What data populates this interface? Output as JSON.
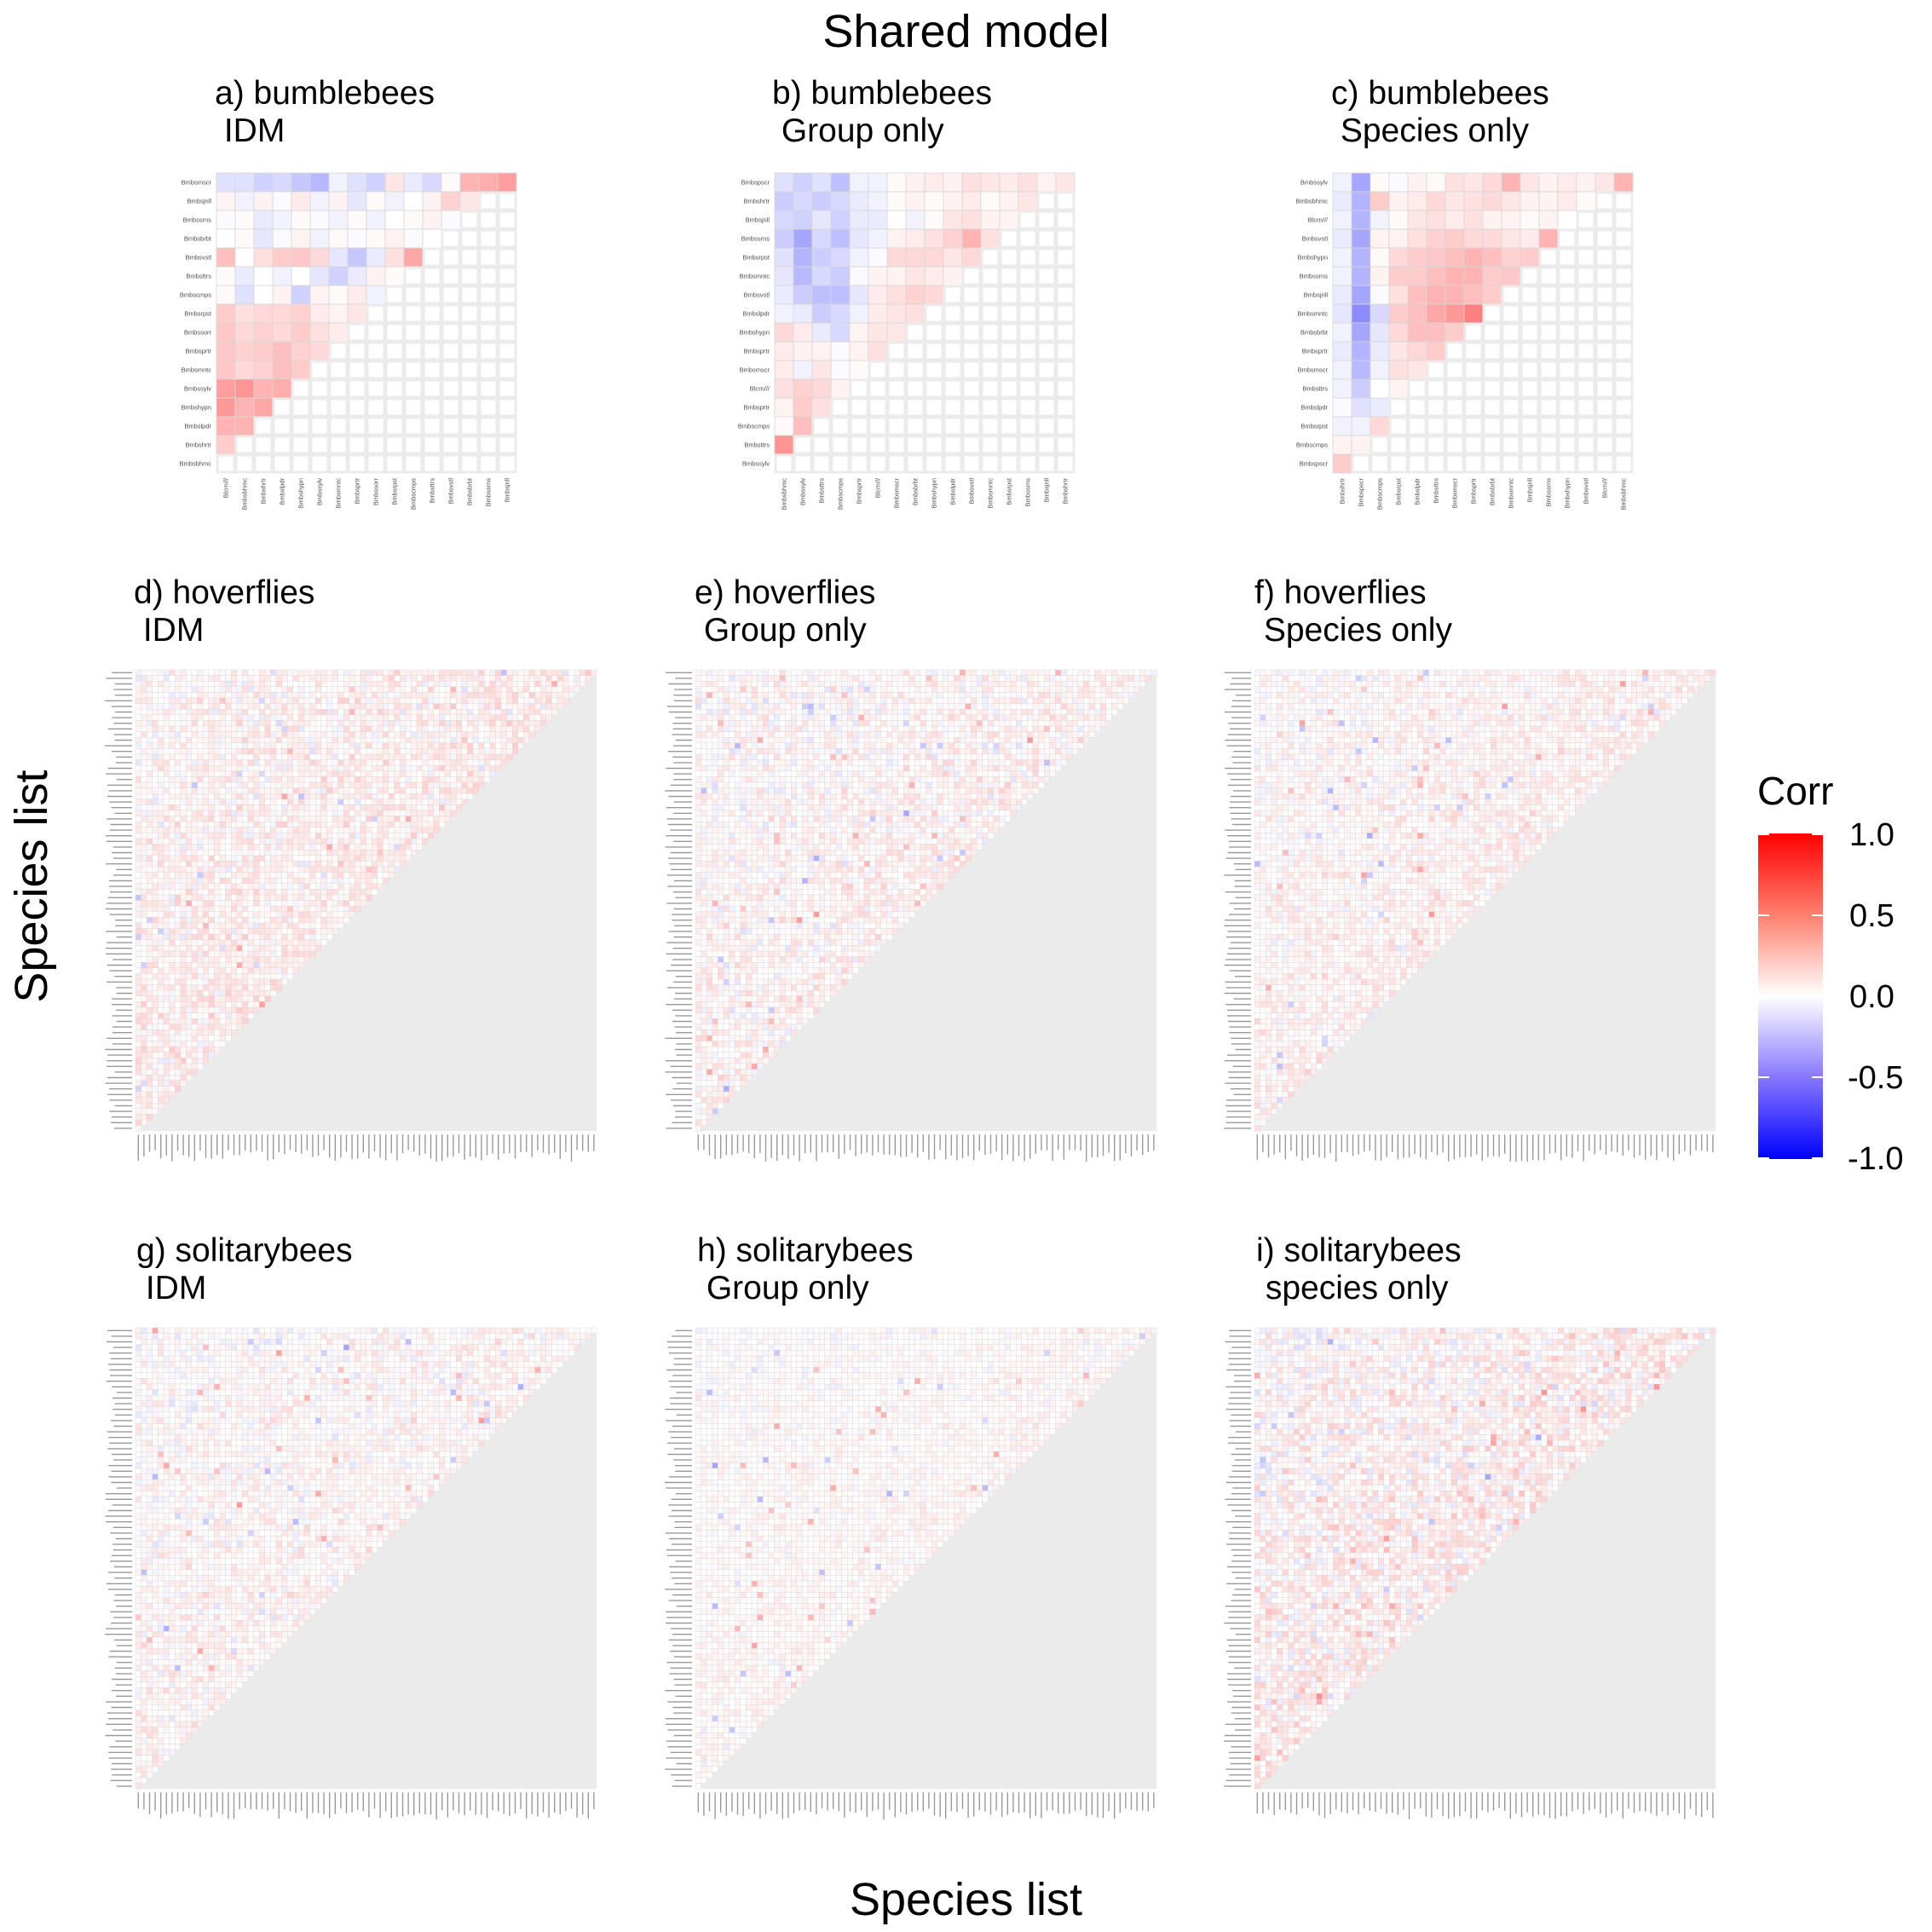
{
  "title": "Shared model",
  "xlabel": "Species list",
  "ylabel": "Species list",
  "legend": {
    "title": "Corr",
    "labels": [
      "1.0",
      "0.5",
      "0.0",
      "-0.5",
      "-1.0"
    ],
    "values": [
      1.0,
      0.5,
      0.0,
      -0.5,
      -1.0
    ],
    "colors": {
      "high": "#ff0000",
      "mid": "#ffffff",
      "low": "#0000ff",
      "na": "#ebebeb",
      "border": "#d6d6d6"
    }
  },
  "panels": [
    {
      "id": "a",
      "title_line1": "a) bumblebees",
      "title_line2": " IDM"
    },
    {
      "id": "b",
      "title_line1": "b) bumblebees",
      "title_line2": " Group only"
    },
    {
      "id": "c",
      "title_line1": "c) bumblebees",
      "title_line2": " Species only"
    },
    {
      "id": "d",
      "title_line1": "d) hoverflies",
      "title_line2": " IDM"
    },
    {
      "id": "e",
      "title_line1": "e) hoverflies",
      "title_line2": " Group only"
    },
    {
      "id": "f",
      "title_line1": "f) hoverflies",
      "title_line2": " Species only"
    },
    {
      "id": "g",
      "title_line1": "g) solitarybees",
      "title_line2": " IDM"
    },
    {
      "id": "h",
      "title_line1": "h) solitarybees",
      "title_line2": " Group only"
    },
    {
      "id": "i",
      "title_line1": "i) solitarybees",
      "title_line2": " species only"
    }
  ],
  "chart_data": [
    {
      "type": "heatmap",
      "title": "a) bumblebees\n IDM",
      "xlabel": "Species list",
      "ylabel": "Species list",
      "color_range": [
        -1,
        1
      ],
      "y_categories": [
        "Bmbsmscr",
        "Bmbsjnll",
        "Bmbssrns",
        "Bmbsbrbt",
        "Bmbsvstl",
        "Bmbsttrs",
        "Bmbscmps",
        "Bmbsrpst",
        "Bmbssorr",
        "Bmbsprtr",
        "Bmbsmntc",
        "Bmbssylv",
        "Bmbshypn",
        "Bmbslpdr",
        "Bmbshrtr",
        "Bmbsbhmc"
      ],
      "x_categories": [
        "Blcrn///",
        "Bmbsbhmc",
        "Bmbshrtr",
        "Bmbslpdr",
        "Bmbshypn",
        "Bmbssylv",
        "Bmbsmntc",
        "Bmbsprtr",
        "Bmbssorr",
        "Bmbsrpst",
        "Bmbscmps",
        "Bmbsttrs",
        "Bmbsvstl",
        "Bmbsbrbt",
        "Bmbssrns",
        "Bmbsjnll"
      ],
      "values": [
        [
          -0.12,
          -0.12,
          -0.18,
          -0.15,
          -0.22,
          -0.28,
          -0.05,
          -0.12,
          -0.18,
          0.1,
          -0.08,
          -0.15,
          0.02,
          0.3,
          0.32,
          0.38
        ],
        [
          0.05,
          -0.05,
          0.05,
          -0.02,
          0.08,
          -0.05,
          0.05,
          -0.1,
          0.02,
          -0.05,
          0.0,
          0.05,
          0.18,
          0.1
        ],
        [
          -0.02,
          0.02,
          -0.08,
          -0.05,
          0.02,
          -0.02,
          -0.05,
          0.02,
          -0.05,
          0.0,
          0.02,
          0.05,
          -0.02
        ],
        [
          0.0,
          0.02,
          -0.1,
          -0.02,
          0.05,
          -0.05,
          0.02,
          -0.02,
          0.02,
          0.05,
          -0.02,
          0.0
        ],
        [
          0.25,
          0.0,
          0.12,
          0.2,
          0.22,
          0.15,
          -0.1,
          -0.22,
          -0.08,
          0.12,
          0.35
        ],
        [
          0.02,
          -0.08,
          0.0,
          -0.05,
          0.0,
          -0.1,
          -0.18,
          -0.08,
          0.05,
          0.02
        ],
        [
          0.02,
          -0.12,
          0.0,
          0.05,
          -0.18,
          0.05,
          0.02,
          0.08,
          -0.05
        ],
        [
          0.2,
          0.12,
          0.15,
          0.15,
          0.18,
          0.08,
          0.05,
          0.1
        ],
        [
          0.22,
          0.15,
          0.18,
          0.15,
          0.2,
          0.12,
          0.08
        ],
        [
          0.22,
          0.18,
          0.2,
          0.25,
          0.18,
          0.15
        ],
        [
          0.22,
          0.15,
          0.18,
          0.25,
          0.2
        ],
        [
          0.38,
          0.42,
          0.3,
          0.32
        ],
        [
          0.4,
          0.3,
          0.35
        ],
        [
          0.3,
          0.3
        ],
        [
          0.2
        ],
        []
      ]
    },
    {
      "type": "heatmap",
      "title": "b) bumblebees\n Group only",
      "xlabel": "Species list",
      "ylabel": "Species list",
      "color_range": [
        -1,
        1
      ],
      "y_categories": [
        "Bmbspscr",
        "Bmbshrtr",
        "Bmbsjnll",
        "Bmbssrns",
        "Bmbsrpst",
        "Bmbsmntc",
        "Bmbsvstl",
        "Bmbslpdr",
        "Bmbshypn",
        "Bmbsprtr",
        "Bmbsmscr",
        "Blcrn///",
        "Bmbsprtr",
        "Bmbscmps",
        "Bmbsttrs",
        "Bmbssylv"
      ],
      "x_categories": [
        "Bmbsbhmc",
        "Bmbssylv",
        "Bmbsttrs",
        "Bmbscmps",
        "Bmbsprtr",
        "Blcrn///",
        "Bmbsmscr",
        "Bmbsbrbt",
        "Bmbshypn",
        "Bmbslpdr",
        "Bmbsvstl",
        "Bmbsmntc",
        "Bmbsrpst",
        "Bmbssrns",
        "Bmbsjnll",
        "Bmbshrtr"
      ],
      "values": [
        [
          -0.12,
          -0.18,
          -0.12,
          -0.25,
          -0.05,
          -0.05,
          0.02,
          0.05,
          0.08,
          0.05,
          0.12,
          0.1,
          0.08,
          0.12,
          0.05,
          0.1
        ],
        [
          -0.2,
          -0.15,
          -0.2,
          -0.15,
          -0.08,
          -0.05,
          0.02,
          0.05,
          0.02,
          0.05,
          0.08,
          0.02,
          0.05,
          0.1
        ],
        [
          -0.15,
          -0.18,
          -0.1,
          -0.18,
          -0.08,
          -0.08,
          0.0,
          -0.05,
          0.02,
          0.1,
          0.12,
          0.05,
          0.05
        ],
        [
          -0.2,
          -0.35,
          -0.15,
          -0.25,
          -0.1,
          -0.05,
          0.05,
          0.08,
          0.12,
          0.18,
          0.3,
          0.12
        ],
        [
          -0.12,
          -0.3,
          -0.2,
          -0.15,
          -0.05,
          -0.02,
          0.15,
          0.15,
          0.15,
          0.1,
          0.15
        ],
        [
          -0.1,
          -0.28,
          -0.15,
          -0.2,
          -0.02,
          0.05,
          0.05,
          0.1,
          0.08,
          0.05
        ],
        [
          -0.08,
          -0.2,
          -0.25,
          -0.25,
          -0.1,
          0.08,
          0.12,
          0.18,
          0.15
        ],
        [
          -0.05,
          -0.08,
          -0.2,
          -0.15,
          -0.05,
          0.08,
          0.1,
          0.12
        ],
        [
          0.15,
          0.08,
          -0.08,
          -0.15,
          0.05,
          0.1,
          0.1
        ],
        [
          0.08,
          0.05,
          0.05,
          -0.02,
          0.05,
          0.12
        ],
        [
          0.08,
          -0.05,
          0.1,
          -0.02,
          0.02
        ],
        [
          0.12,
          0.18,
          0.15,
          0.05
        ],
        [
          0.05,
          0.2,
          0.12
        ],
        [
          0.02,
          0.25
        ],
        [
          0.42
        ],
        []
      ]
    },
    {
      "type": "heatmap",
      "title": "c) bumblebees\n Species only",
      "xlabel": "Species list",
      "ylabel": "Species list",
      "color_range": [
        -1,
        1
      ],
      "y_categories": [
        "Bmbssylv",
        "Bmbsbhmc",
        "Blcrn///",
        "Bmbsvstl",
        "Bmbshypn",
        "Bmbssrns",
        "Bmbsjnll",
        "Bmbsmntc",
        "Bmbsbrbt",
        "Bmbsprtr",
        "Bmbsmscr",
        "Bmbsttrs",
        "Bmbslpdr",
        "Bmbsrpst",
        "Bmbscmps",
        "Bmbspscr"
      ],
      "x_categories": [
        "Bmbshrtr",
        "Bmbspscr",
        "Bmbscmps",
        "Bmbsrpst",
        "Bmbslpdr",
        "Bmbsttrs",
        "Bmbsmscr",
        "Bmbsprtr",
        "Bmbsbrbt",
        "Bmbsmntc",
        "Bmbsjnll",
        "Bmbssrns",
        "Bmbshypn",
        "Bmbsvstl",
        "Blcrn///",
        "Bmbsbhmc"
      ],
      "values": [
        [
          -0.05,
          -0.35,
          0.02,
          -0.02,
          0.05,
          0.02,
          0.12,
          0.1,
          0.15,
          0.3,
          0.1,
          0.05,
          0.08,
          0.05,
          0.1,
          0.3
        ],
        [
          -0.08,
          -0.3,
          0.2,
          0.05,
          0.08,
          0.15,
          0.1,
          0.12,
          0.15,
          0.1,
          0.05,
          0.05,
          0.08,
          0.02
        ],
        [
          -0.05,
          -0.3,
          -0.05,
          0.02,
          0.1,
          0.12,
          0.08,
          0.12,
          0.05,
          0.05,
          0.02,
          0.05,
          0.0
        ],
        [
          -0.08,
          -0.35,
          0.05,
          0.05,
          0.12,
          0.18,
          0.2,
          0.15,
          0.15,
          0.1,
          0.08,
          0.3
        ],
        [
          -0.05,
          -0.3,
          0.02,
          0.15,
          0.2,
          0.22,
          0.25,
          0.3,
          0.25,
          0.18,
          0.2
        ],
        [
          -0.05,
          -0.3,
          0.05,
          0.2,
          0.2,
          0.25,
          0.3,
          0.3,
          0.2,
          0.22
        ],
        [
          -0.08,
          -0.35,
          -0.02,
          0.12,
          0.25,
          0.3,
          0.3,
          0.25,
          0.2
        ],
        [
          -0.1,
          -0.45,
          -0.15,
          0.2,
          0.25,
          0.35,
          0.4,
          0.5
        ],
        [
          -0.05,
          -0.35,
          -0.1,
          0.15,
          0.25,
          0.25,
          0.2
        ],
        [
          -0.08,
          -0.3,
          -0.08,
          0.1,
          0.15,
          0.2
        ],
        [
          -0.05,
          -0.28,
          -0.05,
          0.12,
          0.1
        ],
        [
          -0.05,
          -0.2,
          0.0,
          0.05
        ],
        [
          -0.02,
          -0.12,
          -0.08
        ],
        [
          -0.05,
          -0.05,
          0.15
        ],
        [
          0.05,
          0.05
        ],
        [
          0.2
        ]
      ]
    },
    {
      "type": "heatmap",
      "title": "d) hoverflies\n IDM",
      "xlabel": "Species list",
      "ylabel": "Species list",
      "color_range": [
        -1,
        1
      ],
      "n_species": 82,
      "description": "lower-left triangle of weak correlations, mostly between -0.2 and 0.2"
    },
    {
      "type": "heatmap",
      "title": "e) hoverflies\n Group only",
      "xlabel": "Species list",
      "ylabel": "Species list",
      "color_range": [
        -1,
        1
      ],
      "n_species": 82,
      "description": "weak correlations, mostly between -0.2 and 0.2"
    },
    {
      "type": "heatmap",
      "title": "f) hoverflies\n Species only",
      "xlabel": "Species list",
      "ylabel": "Species list",
      "color_range": [
        -1,
        1
      ],
      "n_species": 82,
      "description": "weak correlations, mostly between -0.2 and 0.2"
    },
    {
      "type": "heatmap",
      "title": "g) solitarybees\n IDM",
      "xlabel": "Species list",
      "ylabel": "Species list",
      "color_range": [
        -1,
        1
      ],
      "n_species": 82,
      "description": "weak correlations, mostly between -0.2 and 0.2"
    },
    {
      "type": "heatmap",
      "title": "h) solitarybees\n Group only",
      "xlabel": "Species list",
      "ylabel": "Species list",
      "color_range": [
        -1,
        1
      ],
      "n_species": 82,
      "description": "very weak correlations, mostly between -0.1 and 0.1"
    },
    {
      "type": "heatmap",
      "title": "i) solitarybees\n species only",
      "xlabel": "Species list",
      "ylabel": "Species list",
      "color_range": [
        -1,
        1
      ],
      "n_species": 82,
      "description": "weak correlations, with some blue patches around -0.3 and red patches around 0.3"
    }
  ]
}
